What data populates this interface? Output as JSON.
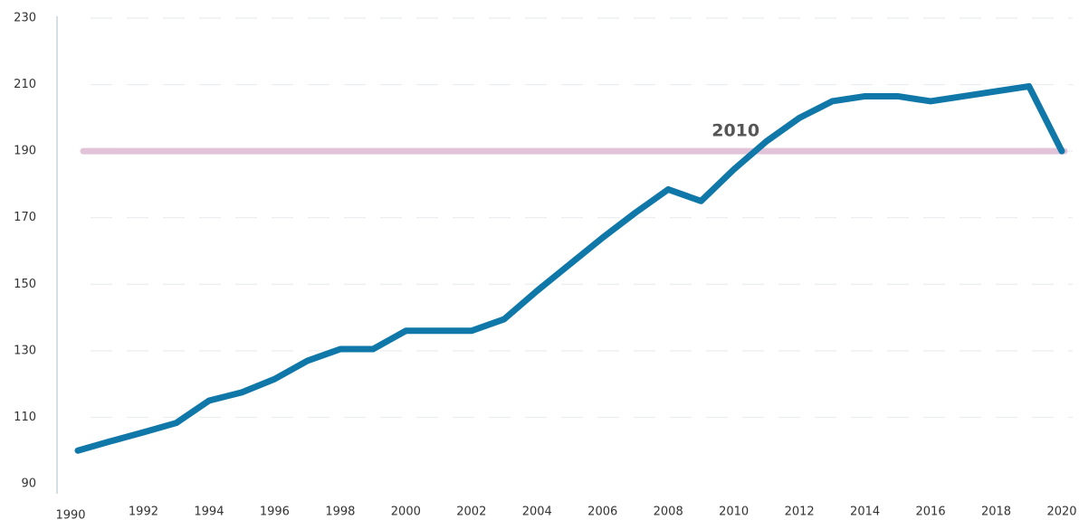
{
  "chart_data": {
    "type": "line",
    "x": [
      1990,
      1991,
      1992,
      1993,
      1994,
      1995,
      1996,
      1997,
      1998,
      1999,
      2000,
      2001,
      2002,
      2003,
      2004,
      2005,
      2006,
      2007,
      2008,
      2009,
      2010,
      2011,
      2012,
      2013,
      2014,
      2015,
      2016,
      2017,
      2018,
      2019,
      2020
    ],
    "series": [
      {
        "color": "#0f78a8",
        "values": [
          100,
          102.8,
          105.5,
          108.3,
          115,
          117.5,
          121.5,
          127,
          130.5,
          130.5,
          136,
          136,
          136,
          139.5,
          148,
          156,
          164,
          171.5,
          178.5,
          175,
          184.5,
          193,
          200,
          205,
          206.5,
          206.5,
          205,
          206.5,
          208,
          209.5,
          190
        ]
      }
    ],
    "reference": {
      "value": 190,
      "label": "2010",
      "color": "#e2c4d8"
    },
    "xlim": [
      1990,
      2020
    ],
    "xticks": [
      1990,
      1992,
      1994,
      1996,
      1998,
      2000,
      2002,
      2004,
      2006,
      2008,
      2010,
      2012,
      2014,
      2016,
      2018,
      2020
    ],
    "ylim": [
      90,
      230
    ],
    "yticks": [
      90,
      110,
      130,
      150,
      170,
      190,
      210,
      230
    ],
    "grid": true
  }
}
